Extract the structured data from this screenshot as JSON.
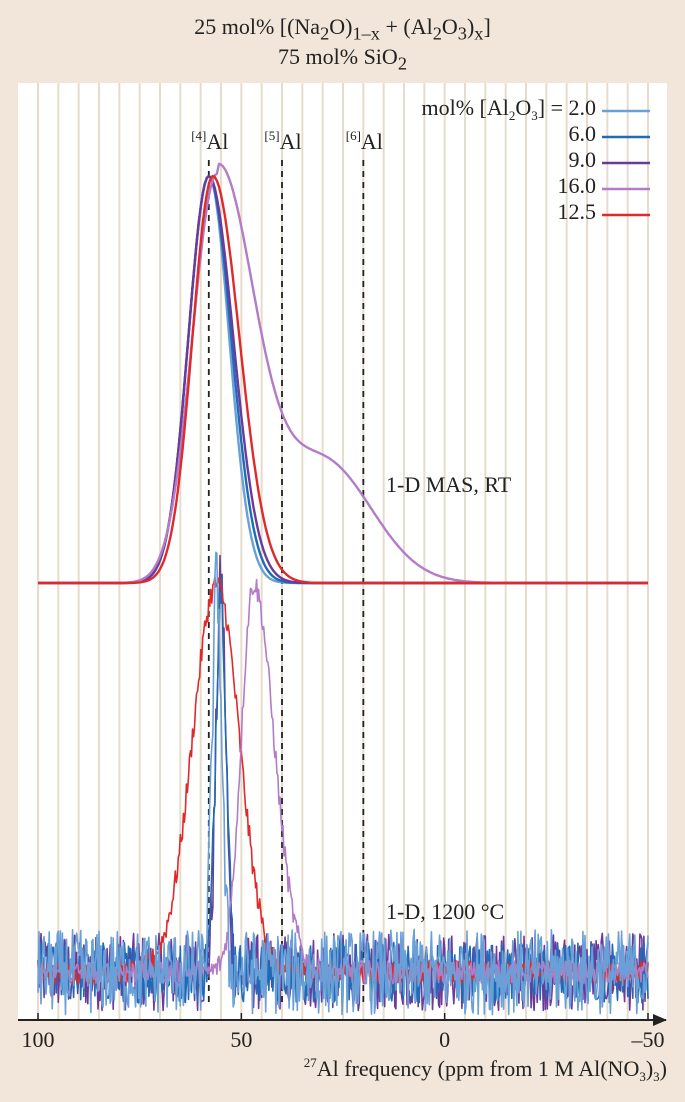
{
  "title": {
    "line1_a": "25 mol% [(Na",
    "line1_sub1": "2",
    "line1_b": "O)",
    "line1_sub2": "1–x",
    "line1_c": " + (Al",
    "line1_sub3": "2",
    "line1_d": "O",
    "line1_sub4": "3",
    "line1_e": ")",
    "line1_sub5": "x",
    "line1_f": "]",
    "line2_a": "75 mol% SiO",
    "line2_sub": "2"
  },
  "colors": {
    "background": "#f1e6d9",
    "plot_background": "#ffffff",
    "grid": "#e7dccb",
    "axis": "#222222",
    "reference_line": "#222222"
  },
  "chart_data": {
    "type": "line",
    "title": "25 mol% [(Na2O)1–x + (Al2O3)x] 75 mol% SiO2",
    "xlabel": "27Al frequency (ppm from 1 M Al(NO3)3)",
    "ylabel": "",
    "xlim": [
      100,
      -50
    ],
    "x_reversed": true,
    "x_ticks": [
      100,
      50,
      0,
      -50
    ],
    "x_tick_labels": [
      "100",
      "50",
      "0",
      "–50"
    ],
    "grid": "vertical lines every 5 ppm",
    "legend": {
      "placement": "top-right",
      "title": "mol% [Al2O3] =",
      "entries": [
        {
          "label": "2.0",
          "color": "#6aa0d8"
        },
        {
          "label": "6.0",
          "color": "#1f6bb5"
        },
        {
          "label": "9.0",
          "color": "#6b3a9a"
        },
        {
          "label": "16.0",
          "color": "#b27cc6"
        },
        {
          "label": "12.5",
          "color": "#e02a2a"
        }
      ]
    },
    "reference_lines": [
      {
        "label": "[4]Al",
        "sup": "[4]",
        "base": "Al",
        "x": 58
      },
      {
        "label": "[5]Al",
        "sup": "[5]",
        "base": "Al",
        "x": 40
      },
      {
        "label": "[6]Al",
        "sup": "[6]",
        "base": "Al",
        "x": 20
      }
    ],
    "panels": [
      {
        "label": "1-D MAS, RT",
        "series": [
          {
            "name": "2.0",
            "color": "#6aa0d8",
            "peak_x": 58,
            "width_left": 5,
            "width_right": 5,
            "tail_amp": 0,
            "tail_x": 30,
            "tail_width": 20
          },
          {
            "name": "6.0",
            "color": "#1f6bb5",
            "peak_x": 58,
            "width_left": 5,
            "width_right": 5.5,
            "tail_amp": 0,
            "tail_x": 30,
            "tail_width": 20
          },
          {
            "name": "9.0",
            "color": "#6b3a9a",
            "peak_x": 58,
            "width_left": 5,
            "width_right": 6,
            "tail_amp": 0,
            "tail_x": 30,
            "tail_width": 20
          },
          {
            "name": "16.0",
            "color": "#b27cc6",
            "peak_x": 56,
            "width_left": 6,
            "width_right": 9,
            "tail_amp": 0.3,
            "tail_x": 30,
            "tail_width": 12
          },
          {
            "name": "12.5",
            "color": "#e02a2a",
            "peak_x": 57,
            "width_left": 5,
            "width_right": 6.5,
            "tail_amp": 0,
            "tail_x": 30,
            "tail_width": 20
          }
        ]
      },
      {
        "label": "1-D, 1200 °C",
        "series": [
          {
            "name": "9.0",
            "color": "#6b3a9a",
            "peak_x": 55,
            "width_left": 1.2,
            "width_right": 1.2,
            "noise": 0.1
          },
          {
            "name": "6.0",
            "color": "#1f6bb5",
            "peak_x": 55,
            "width_left": 1.3,
            "width_right": 1.3,
            "noise": 0.08
          },
          {
            "name": "12.5",
            "color": "#e02a2a",
            "peak_x": 56,
            "width_left": 6,
            "width_right": 5.5,
            "noise": 0.03
          },
          {
            "name": "16.0",
            "color": "#b27cc6",
            "peak_x": 47,
            "width_left": 3,
            "width_right": 5,
            "noise": 0.03
          },
          {
            "name": "2.0",
            "color": "#6aa0d8",
            "peak_x": 56,
            "width_left": 1.2,
            "width_right": 1.2,
            "noise": 0.11
          }
        ]
      }
    ]
  }
}
